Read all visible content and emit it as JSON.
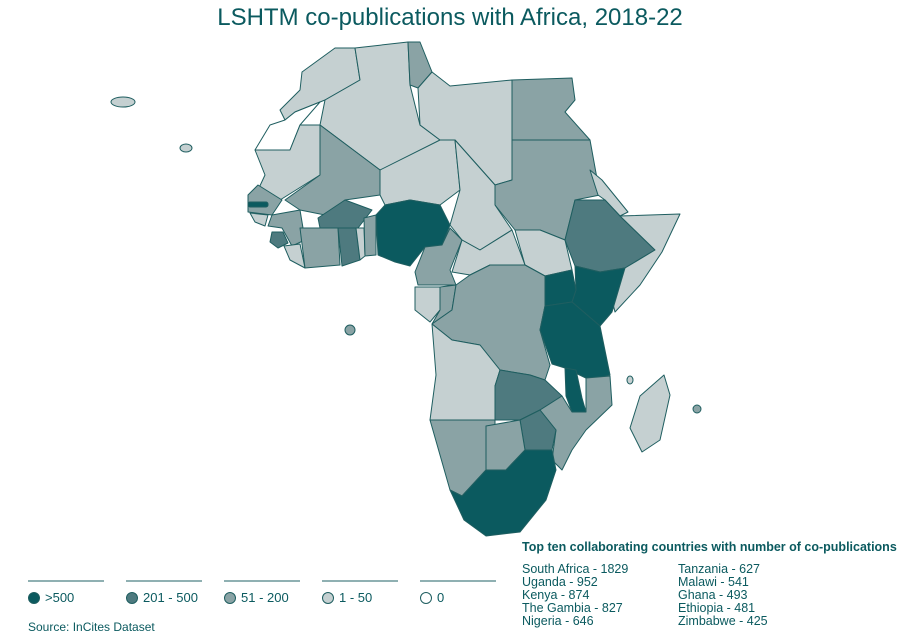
{
  "title": "LSHTM co-publications with Africa, 2018-22",
  "legend": [
    {
      "label": ">500",
      "color": "#0b5a5f"
    },
    {
      "label": "201 - 500",
      "color": "#4e7a7f"
    },
    {
      "label": "51 - 200",
      "color": "#8aa3a5"
    },
    {
      "label": "1 - 50",
      "color": "#c5d0d1"
    },
    {
      "label": "0",
      "color": "#ffffff"
    }
  ],
  "source": "Source: InCites Dataset",
  "top_ten": {
    "title": "Top ten collaborating countries with number of co-publications",
    "items": [
      "South Africa - 1829",
      "Uganda - 952",
      "Kenya - 874",
      "The Gambia - 827",
      "Nigeria - 646",
      "Tanzania - 627",
      "Malawi - 541",
      "Ghana - 493",
      "Ethiopia - 481",
      "Zimbabwe - 425"
    ]
  },
  "countries": {
    "morocco": 3,
    "western-sahara": 4,
    "algeria": 3,
    "tunisia": 2,
    "libya": 3,
    "egypt": 2,
    "sudan": 2,
    "mauritania": 3,
    "mali": 2,
    "niger": 3,
    "chad": 3,
    "senegal": 2,
    "gambia": 0,
    "guinea-bissau": 3,
    "guinea": 2,
    "sierra-leone": 1,
    "liberia": 3,
    "cote-divoire": 2,
    "burkina-faso": 1,
    "ghana": 1,
    "togo": 3,
    "benin": 2,
    "nigeria": 0,
    "cameroon": 2,
    "car": 3,
    "south-sudan": 3,
    "eritrea": 3,
    "ethiopia": 1,
    "somalia": 3,
    "kenya": 0,
    "uganda": 0,
    "gabon": 3,
    "congo": 2,
    "drc": 2,
    "tanzania": 0,
    "angola": 3,
    "zambia": 1,
    "malawi": 0,
    "mozambique": 2,
    "zimbabwe": 1,
    "namibia": 2,
    "botswana": 2,
    "south-africa": 0,
    "madagascar": 3,
    "cape-verde": 3,
    "canary": 3,
    "comoros": 3,
    "sao-tome": 2,
    "mauritius": 2
  }
}
